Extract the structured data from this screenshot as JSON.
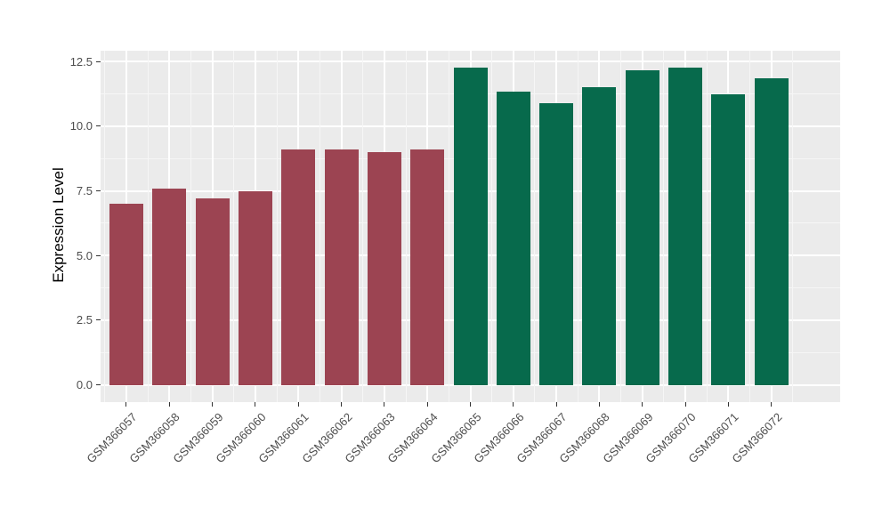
{
  "figure": {
    "background": "#ffffff"
  },
  "chart_data": {
    "type": "bar",
    "title": "",
    "xlabel": "",
    "ylabel": "Expression Level",
    "categories": [
      "GSM366057",
      "GSM366058",
      "GSM366059",
      "GSM366060",
      "GSM366061",
      "GSM366062",
      "GSM366063",
      "GSM366064",
      "GSM366065",
      "GSM366066",
      "GSM366067",
      "GSM366068",
      "GSM366069",
      "GSM366070",
      "GSM366071",
      "GSM366072"
    ],
    "values": [
      7.0,
      7.6,
      7.2,
      7.5,
      9.1,
      9.1,
      9.0,
      9.1,
      12.25,
      11.35,
      10.9,
      11.5,
      12.15,
      12.25,
      11.25,
      11.85
    ],
    "bar_colors": [
      "#9C4452",
      "#9C4452",
      "#9C4452",
      "#9C4452",
      "#9C4452",
      "#9C4452",
      "#9C4452",
      "#9C4452",
      "#076A4C",
      "#076A4C",
      "#076A4C",
      "#076A4C",
      "#076A4C",
      "#076A4C",
      "#076A4C",
      "#076A4C"
    ],
    "group_colors": {
      "left_group": "#9C4452",
      "right_group": "#076A4C"
    },
    "yticks": [
      0.0,
      2.5,
      5.0,
      7.5,
      10.0,
      12.5
    ],
    "ytick_labels": [
      "0.0",
      "2.5",
      "5.0",
      "7.5",
      "10.0",
      "12.5"
    ],
    "yminor": [
      1.25,
      3.75,
      6.25,
      8.75,
      11.25
    ],
    "ylim": [
      -0.67,
      12.92
    ],
    "legend": "none",
    "grid": "on",
    "panel_background": "#EBEBEB",
    "gridline_major_color": "#FFFFFF",
    "gridline_minor_color": "#F6F6F6",
    "tick_mark_color": "#333333",
    "tick_label_color": "#4D4D4D",
    "axis_title_color": "#000000"
  }
}
